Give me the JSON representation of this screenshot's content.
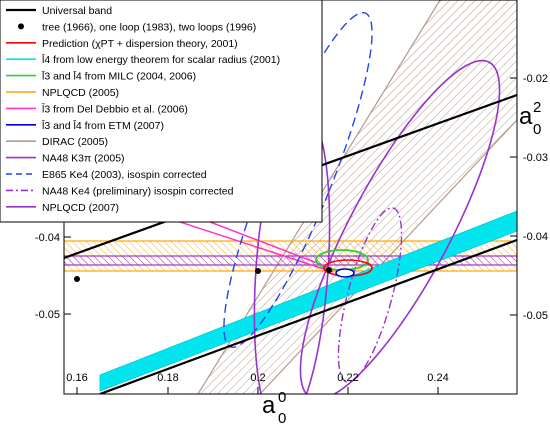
{
  "chart_data": {
    "type": "scatter",
    "xlim": [
      0.155,
      0.252
    ],
    "ylim": [
      -0.0565,
      -0.0115
    ],
    "x_ticks": [
      0.16,
      0.18,
      0.2,
      0.22,
      0.24
    ],
    "x_tick_labels": [
      "0.16",
      "0.18",
      "0.2",
      "0.22",
      "0.24"
    ],
    "y_ticks_left": [
      -0.04,
      -0.05
    ],
    "y_ticks_left_labels": [
      "-0.04",
      "-0.05"
    ],
    "y_ticks_right": [
      -0.02,
      -0.03,
      -0.04,
      -0.05
    ],
    "y_ticks_right_labels": [
      "-0.02",
      "-0.03",
      "-0.04",
      "-0.05"
    ],
    "xlabel": {
      "main": "a",
      "sup": "0",
      "sub": "0"
    },
    "ylabel": {
      "main": "a",
      "sup": "2",
      "sub": "0"
    },
    "legend_position": "top-left",
    "legend": [
      {
        "label": "Universal band",
        "color": "#000000",
        "style": "line-thick"
      },
      {
        "label": "tree (1966), one loop (1983), two loops (1996)",
        "color": "#000000",
        "style": "dot"
      },
      {
        "label": "Prediction (χPT + dispersion theory, 2001)",
        "color": "#ff0000",
        "style": "line"
      },
      {
        "label": "l̄4  from low energy theorem for scalar radius (2001)",
        "color": "#00e5ee",
        "style": "line"
      },
      {
        "label": "l̄3 and l̄4 from MILC (2004, 2006)",
        "color": "#33cc33",
        "style": "line"
      },
      {
        "label": "NPLQCD (2005)",
        "color": "#ffa500",
        "style": "line"
      },
      {
        "label": "l̄3  from Del Debbio et al. (2006)",
        "color": "#ff33cc",
        "style": "line"
      },
      {
        "label": "l̄3 and l̄4 from ETM (2007)",
        "color": "#0000cc",
        "style": "line"
      },
      {
        "label": "DIRAC (2005)",
        "color": "#b49a8c",
        "style": "line"
      },
      {
        "label": "NA48 K3π (2005)",
        "color": "#9933cc",
        "style": "line"
      },
      {
        "label": "E865 Ke4 (2003), isospin corrected",
        "color": "#2244ee",
        "style": "dashed"
      },
      {
        "label": "NA48 Ke4 (preliminary)  isospin corrected",
        "color": "#9933cc",
        "style": "dashdot"
      },
      {
        "label": "NPLQCD (2007)",
        "color": "#9933cc",
        "style": "line"
      }
    ],
    "series": [
      {
        "name": "tree (1966), one loop (1983), two loops (1996)",
        "points": [
          {
            "x": 0.159,
            "y": -0.0454
          },
          {
            "x": 0.2,
            "y": -0.0445
          },
          {
            "x": 0.216,
            "y": -0.0444
          }
        ]
      },
      {
        "name": "Universal band",
        "upper": [
          {
            "x": 0.155,
            "y": -0.0405
          },
          {
            "x": 0.252,
            "y": -0.0225
          }
        ],
        "lower": [
          {
            "x": 0.155,
            "y": -0.0585
          },
          {
            "x": 0.252,
            "y": -0.0405
          }
        ]
      },
      {
        "name": "Prediction (χPT + dispersion theory, 2001)",
        "center": {
          "x": 0.22,
          "y": -0.0444
        },
        "rx": 0.006,
        "ry": 0.0012
      },
      {
        "name": "l̄3 and l̄4 from MILC (2004, 2006)",
        "center": {
          "x": 0.22,
          "y": -0.0433
        },
        "rx": 0.0055,
        "ry": 0.0012
      },
      {
        "name": "l̄3 and l̄4 from ETM (2007)",
        "center": {
          "x": 0.2196,
          "y": -0.0447
        },
        "rx": 0.002,
        "ry": 0.0006
      },
      {
        "name": "NPLQCD (2005)",
        "y_range": [
          -0.0446,
          -0.0408
        ]
      },
      {
        "name": "NPLQCD (2007)",
        "y_range": [
          -0.0437,
          -0.0425
        ]
      },
      {
        "name": "NA48 K3π (2005)",
        "center": {
          "x": 0.232,
          "y": -0.036
        },
        "rx": 0.0045,
        "ry": 0.031,
        "angle": 8
      }
    ]
  }
}
